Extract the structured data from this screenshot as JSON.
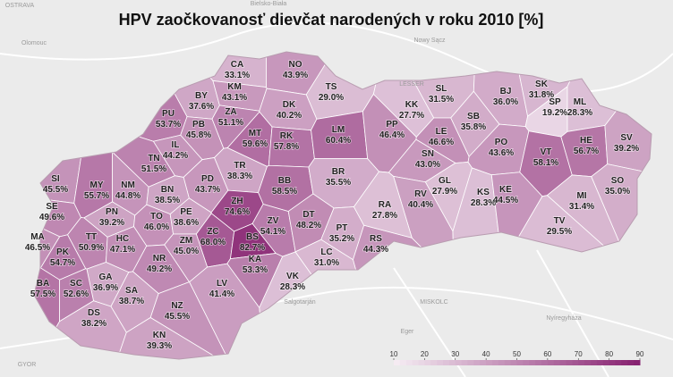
{
  "chart_data": {
    "type": "choropleth",
    "title": "HPV zaočkovanosť dievčat narodených v roku 2010 [%]",
    "categories": [
      "CA",
      "NO",
      "TS",
      "BY",
      "KM",
      "ZA",
      "DK",
      "PU",
      "PB",
      "MT",
      "RK",
      "LM",
      "IL",
      "TN",
      "PD",
      "TR",
      "BB",
      "BR",
      "SI",
      "MY",
      "NM",
      "BN",
      "SE",
      "PN",
      "TO",
      "PE",
      "ZH",
      "ZC",
      "ZV",
      "BS",
      "KA",
      "DT",
      "PT",
      "RS",
      "MA",
      "TT",
      "HC",
      "ZM",
      "PK",
      "NR",
      "LC",
      "GA",
      "BA",
      "SC",
      "SA",
      "LV",
      "VK",
      "DS",
      "NZ",
      "KN",
      "PP",
      "KK",
      "SL",
      "BJ",
      "SK",
      "SP",
      "ML",
      "SB",
      "LE",
      "PO",
      "VT",
      "HE",
      "SV",
      "SN",
      "GL",
      "RV",
      "KS",
      "KE",
      "RA",
      "SO",
      "MI",
      "TV"
    ],
    "values": [
      33.1,
      43.9,
      29.0,
      37.6,
      43.1,
      51.1,
      40.2,
      53.7,
      45.8,
      59.6,
      57.8,
      60.4,
      44.2,
      51.5,
      43.7,
      38.3,
      58.5,
      35.5,
      45.5,
      55.7,
      44.8,
      38.5,
      49.6,
      39.2,
      46.0,
      38.6,
      74.6,
      68.0,
      54.1,
      82.7,
      53.3,
      48.2,
      35.2,
      44.3,
      46.5,
      50.9,
      47.1,
      45.0,
      54.7,
      49.2,
      31.0,
      36.9,
      57.5,
      52.6,
      38.7,
      41.4,
      28.3,
      38.2,
      45.5,
      39.3,
      46.4,
      27.7,
      31.5,
      36.0,
      31.8,
      19.2,
      28.3,
      35.8,
      46.6,
      43.6,
      58.1,
      56.7,
      39.2,
      43.0,
      27.9,
      40.4,
      28.3,
      44.5,
      27.8,
      35.0,
      31.4,
      29.5
    ],
    "value_labels": [
      "33.1%",
      "43.9%",
      "29.0%",
      "37.6%",
      "43.1%",
      "51.1%",
      "40.2%",
      "53.7%",
      "45.8%",
      "59.6%",
      "57.8%",
      "60.4%",
      "44.2%",
      "51.5%",
      "43.7%",
      "38.3%",
      "58.5%",
      "35.5%",
      "45.5%",
      "55.7%",
      "44.8%",
      "38.5%",
      "49.6%",
      "39.2%",
      "46.0%",
      "38.6%",
      "74.6%",
      "68.0%",
      "54.1%",
      "82.7%",
      "53.3%",
      "48.2%",
      "35.2%",
      "44.3%",
      "46.5%",
      "50.9%",
      "47.1%",
      "45.0%",
      "54.7%",
      "49.2%",
      "31.0%",
      "36.9%",
      "57.5%",
      "52.6%",
      "38.7%",
      "41.4%",
      "28.3%",
      "38.2%",
      "45.5%",
      "39.3%",
      "46.4%",
      "27.7%",
      "31.5%",
      "36.0%",
      "31.8%",
      "19.2%",
      "28.3%",
      "35.8%",
      "46.6%",
      "43.6%",
      "58.1%",
      "56.7%",
      "39.2%",
      "43.0%",
      "27.9%",
      "40.4%",
      "28.3%",
      "44.5%",
      "27.8%",
      "35.0%",
      "31.4%",
      "29.5%"
    ],
    "colorscale": {
      "range": [
        10,
        90
      ],
      "colors": [
        "#f6eef4",
        "#86206f"
      ],
      "ticks": [
        10,
        20,
        30,
        40,
        50,
        60,
        70,
        80,
        90
      ]
    },
    "basemap_labels": [
      "OSTRAVA",
      "Olomouc",
      "Bielsko-Biała",
      "Nowy Sącz",
      "LESSER",
      "Salgotarján",
      "MISKOLC",
      "Eger",
      "Nyíregyháza",
      "GYOR"
    ]
  }
}
